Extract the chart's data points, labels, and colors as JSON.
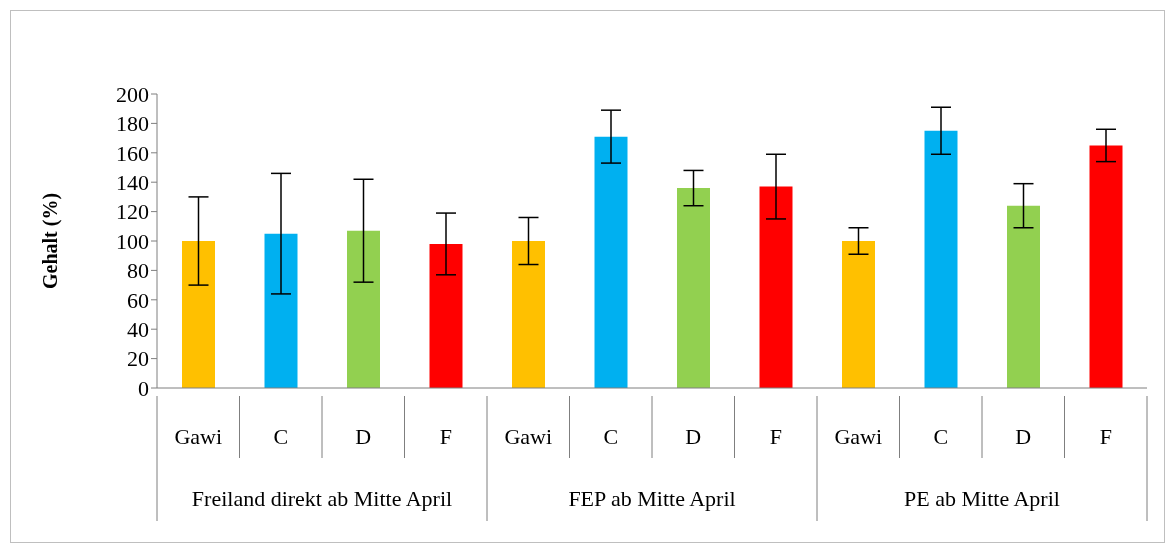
{
  "chart_data": {
    "type": "bar",
    "ylabel": "Gehalt (%)",
    "categories": [
      "Gawi",
      "C",
      "D",
      "F",
      "Gawi",
      "C",
      "D",
      "F",
      "Gawi",
      "C",
      "D",
      "F"
    ],
    "values": [
      100,
      105,
      107,
      98,
      100,
      171,
      136,
      137,
      100,
      175,
      124,
      165
    ],
    "errors": [
      30,
      41,
      35,
      21,
      16,
      18,
      12,
      22,
      9,
      16,
      15,
      11
    ],
    "colors": [
      "#ffc000",
      "#00b0f0",
      "#92d050",
      "#ff0000",
      "#ffc000",
      "#00b0f0",
      "#92d050",
      "#ff0000",
      "#ffc000",
      "#00b0f0",
      "#92d050",
      "#ff0000"
    ],
    "annotations": [
      "Freiland direkt ab Mitte April",
      "FEP ab Mitte April",
      "PE ab Mitte April"
    ],
    "ylim": [
      0,
      200
    ],
    "yticks": [
      0,
      20,
      40,
      60,
      80,
      100,
      120,
      140,
      160,
      180,
      200
    ],
    "grid": false,
    "legend": false
  }
}
